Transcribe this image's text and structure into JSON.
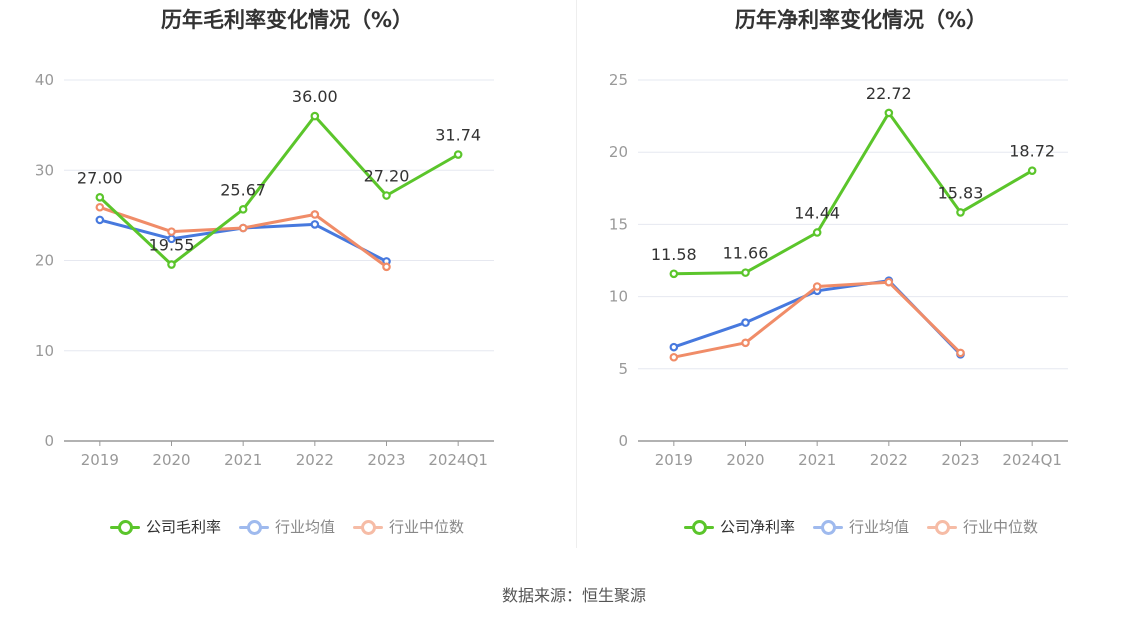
{
  "source": "数据来源：恒生聚源",
  "colors": {
    "company": "#5bc52b",
    "avg": "#4779de",
    "median": "#f08c68",
    "grid": "#e6e8f0",
    "axis": "#999999",
    "tick": "#999999"
  },
  "chart_data": [
    {
      "type": "line",
      "title": "历年毛利率变化情况（%）",
      "categories": [
        "2019",
        "2020",
        "2021",
        "2022",
        "2023",
        "2024Q1"
      ],
      "ylim": [
        0,
        40
      ],
      "yticks": [
        0,
        10,
        20,
        30,
        40
      ],
      "grid": true,
      "legend_position": "bottom",
      "series": [
        {
          "name": "公司毛利率",
          "color": "#5bc52b",
          "values": [
            27.0,
            19.55,
            25.67,
            36.0,
            27.2,
            31.74
          ],
          "labels": [
            "27.00",
            "19.55",
            "25.67",
            "36.00",
            "27.20",
            "31.74"
          ]
        },
        {
          "name": "行业均值",
          "color": "#4779de",
          "values": [
            24.5,
            22.4,
            23.6,
            24.0,
            19.9,
            null
          ]
        },
        {
          "name": "行业中位数",
          "color": "#f08c68",
          "values": [
            25.9,
            23.2,
            23.6,
            25.1,
            19.3,
            null
          ]
        }
      ]
    },
    {
      "type": "line",
      "title": "历年净利率变化情况（%）",
      "categories": [
        "2019",
        "2020",
        "2021",
        "2022",
        "2023",
        "2024Q1"
      ],
      "ylim": [
        0,
        25
      ],
      "yticks": [
        0,
        5,
        10,
        15,
        20,
        25
      ],
      "grid": true,
      "legend_position": "bottom",
      "series": [
        {
          "name": "公司净利率",
          "color": "#5bc52b",
          "values": [
            11.58,
            11.66,
            14.44,
            22.72,
            15.83,
            18.72
          ],
          "labels": [
            "11.58",
            "11.66",
            "14.44",
            "22.72",
            "15.83",
            "18.72"
          ]
        },
        {
          "name": "行业均值",
          "color": "#4779de",
          "values": [
            6.5,
            8.2,
            10.4,
            11.1,
            6.0,
            null
          ]
        },
        {
          "name": "行业中位数",
          "color": "#f08c68",
          "values": [
            5.8,
            6.8,
            10.7,
            11.0,
            6.1,
            null
          ]
        }
      ]
    }
  ]
}
